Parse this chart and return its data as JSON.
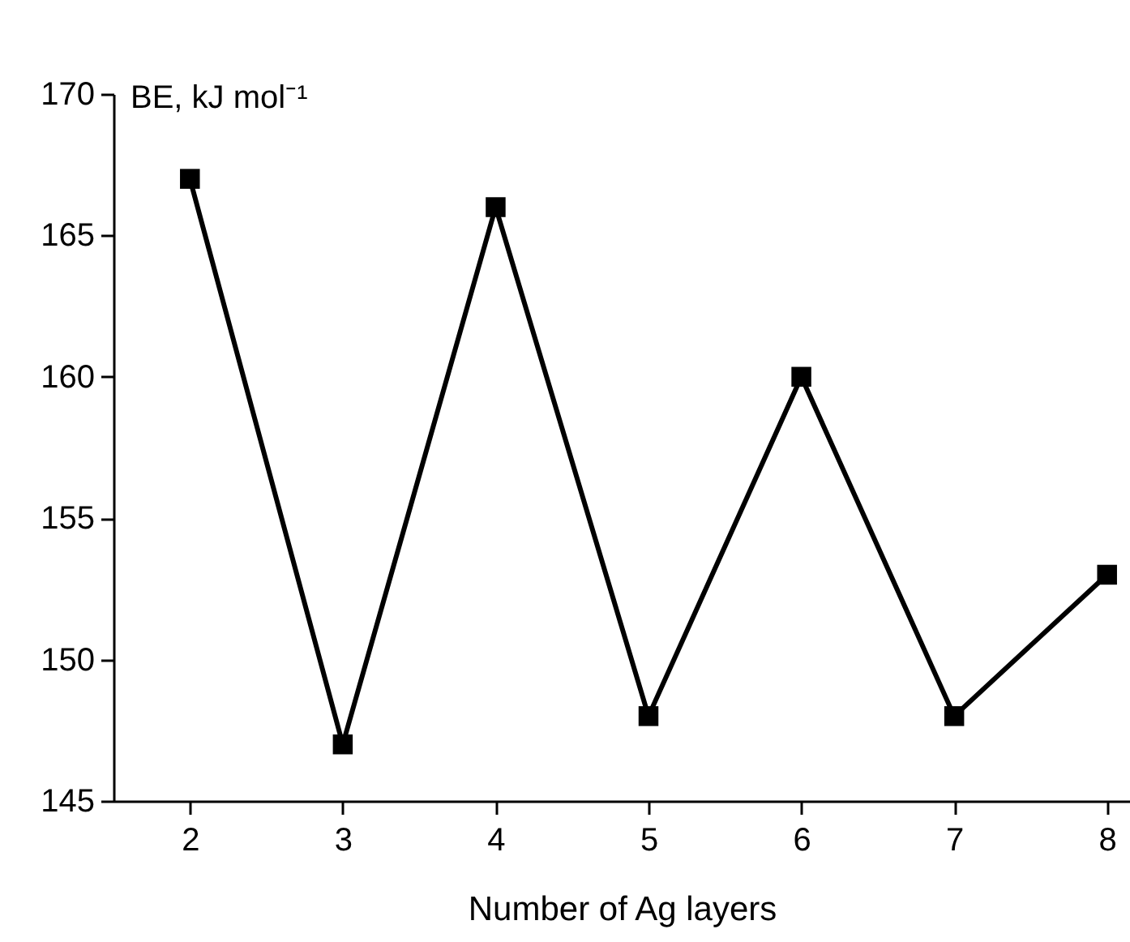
{
  "chart_data": {
    "type": "line",
    "xlabel": "Number of Ag layers",
    "ylabel": "BE, kJ mol⁻¹",
    "x": [
      2,
      3,
      4,
      5,
      6,
      7,
      8
    ],
    "series": [
      {
        "color": "#000000",
        "values": [
          167,
          147,
          166,
          148,
          160,
          148,
          153
        ]
      }
    ],
    "xlim": [
      1.5,
      8.15
    ],
    "xticks": [
      2,
      3,
      4,
      5,
      6,
      7,
      8
    ],
    "ylim": [
      145,
      170
    ],
    "yticks": [
      145,
      150,
      155,
      160,
      165,
      170
    ],
    "marker": "square",
    "line_style": "solid"
  }
}
